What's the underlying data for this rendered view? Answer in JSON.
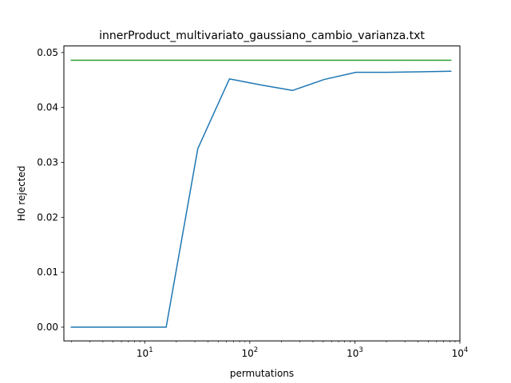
{
  "chart_data": {
    "type": "line",
    "title": "innerProduct_multivariato_gaussiano_cambio_varianza.txt",
    "xlabel": "permutations",
    "ylabel": "H0 rejected",
    "xscale": "log",
    "xlim": [
      1.7,
      10000
    ],
    "ylim": [
      -0.0025,
      0.0512
    ],
    "grid": false,
    "x_ticks": [
      {
        "value": 10,
        "base": "10",
        "exp": "1"
      },
      {
        "value": 100,
        "base": "10",
        "exp": "2"
      },
      {
        "value": 1000,
        "base": "10",
        "exp": "3"
      },
      {
        "value": 10000,
        "base": "10",
        "exp": "4"
      }
    ],
    "y_ticks": [
      {
        "value": 0.0,
        "label": "0.00"
      },
      {
        "value": 0.01,
        "label": "0.01"
      },
      {
        "value": 0.02,
        "label": "0.02"
      },
      {
        "value": 0.03,
        "label": "0.03"
      },
      {
        "value": 0.04,
        "label": "0.04"
      },
      {
        "value": 0.05,
        "label": "0.05"
      }
    ],
    "series": [
      {
        "color": "#1f77b4",
        "x": [
          2,
          4,
          8,
          16,
          32,
          64,
          128,
          256,
          512,
          1024,
          2048,
          4096,
          8192
        ],
        "y": [
          0.0,
          0.0,
          0.0,
          0.0,
          0.0325,
          0.0452,
          0.0441,
          0.0431,
          0.0451,
          0.0464,
          0.0464,
          0.0465,
          0.0466
        ]
      },
      {
        "color": "#2ca02c",
        "x": [
          2,
          8192
        ],
        "y": [
          0.0486,
          0.0486
        ]
      }
    ]
  }
}
